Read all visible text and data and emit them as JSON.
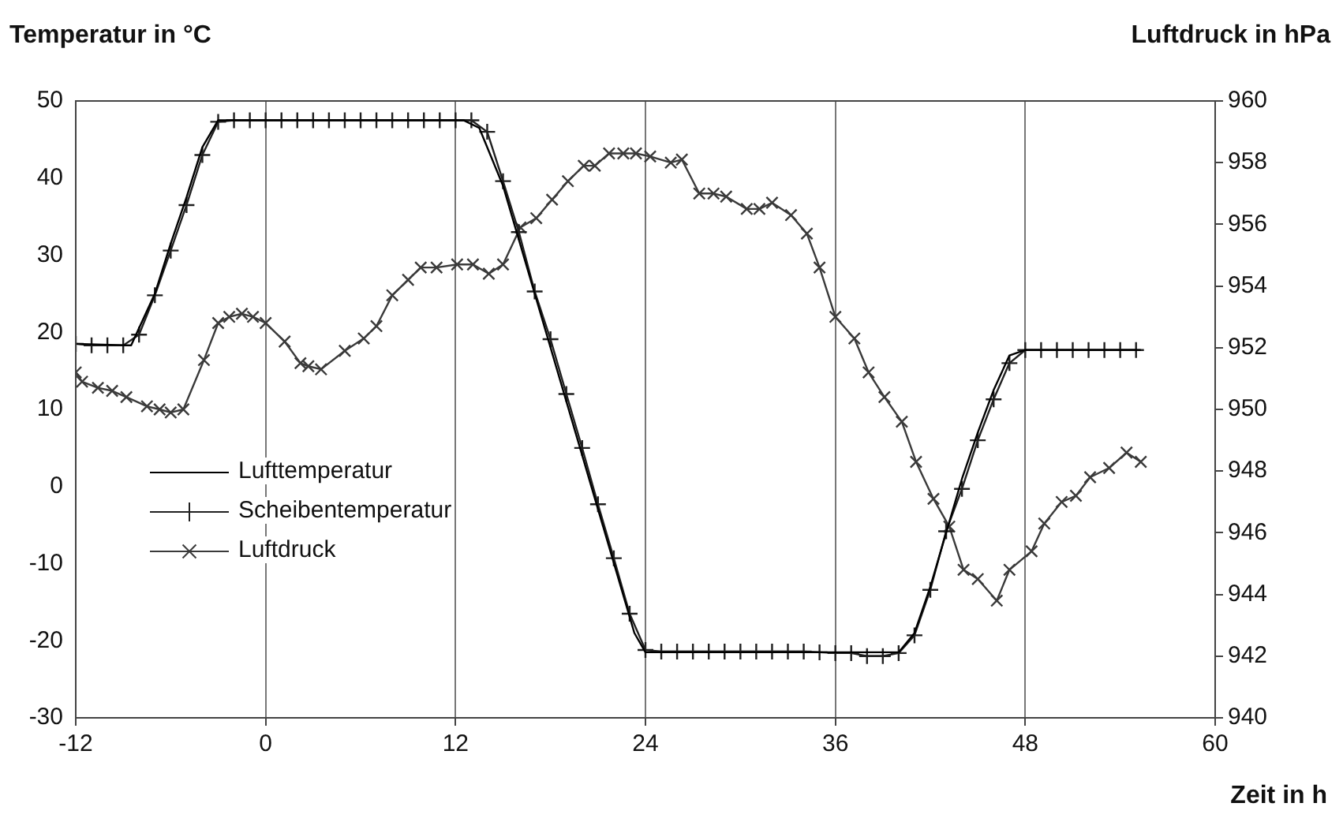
{
  "chart_data": {
    "type": "line",
    "xlabel": "Zeit in h",
    "ylabel": "Temperatur in °C",
    "y2label": "Luftdruck in hPa",
    "xlim": [
      -12,
      60
    ],
    "xticks": [
      -12,
      0,
      12,
      24,
      36,
      48,
      60
    ],
    "ylim": [
      -30,
      50
    ],
    "yticks": [
      -30,
      -20,
      -10,
      0,
      10,
      20,
      30,
      40,
      50
    ],
    "y2lim": [
      940,
      960
    ],
    "y2ticks": [
      940,
      942,
      944,
      946,
      948,
      950,
      952,
      954,
      956,
      958,
      960
    ],
    "grid": "x",
    "legend": "left",
    "line_style": "solid",
    "series": [
      {
        "name": "Lufttemperatur",
        "color": "#000000",
        "marker": "none",
        "x": [
          -12,
          -8.5,
          -7,
          -6,
          -5,
          -4,
          -3,
          12.5,
          13.5,
          15,
          23.3,
          24,
          40,
          41,
          42,
          43,
          44,
          45,
          46,
          47,
          48,
          55.3
        ],
        "values": [
          18.5,
          18.3,
          25,
          31.5,
          37.5,
          44,
          47.5,
          47.5,
          46.5,
          39,
          -19,
          -21.5,
          -21.5,
          -19,
          -13,
          -6,
          1,
          7,
          12.5,
          17,
          17.7,
          17.7
        ]
      },
      {
        "name": "Scheibentemperatur",
        "color": "#202020",
        "marker": "plus",
        "x": [
          -12,
          -11,
          -10,
          -9,
          -8,
          -7,
          -6,
          -5,
          -4,
          -3,
          -2,
          -1,
          0,
          1,
          2,
          3,
          4,
          5,
          6,
          7,
          8,
          9,
          10,
          11,
          12,
          13,
          14,
          15,
          16,
          17,
          18,
          19,
          20,
          21,
          22,
          23,
          24,
          25,
          26,
          27,
          28,
          29,
          30,
          31,
          32,
          33,
          34,
          35,
          36,
          37,
          38,
          39,
          40,
          41,
          42,
          43,
          44,
          45,
          46,
          47,
          48,
          49,
          50,
          51,
          52,
          53,
          54,
          55
        ],
        "values": [
          18.5,
          18.3,
          18.3,
          18.3,
          19.7,
          24.8,
          30.6,
          36.5,
          43,
          47.3,
          47.5,
          47.5,
          47.5,
          47.5,
          47.5,
          47.5,
          47.5,
          47.5,
          47.5,
          47.5,
          47.5,
          47.5,
          47.5,
          47.5,
          47.5,
          47.5,
          46,
          39.6,
          33,
          25.3,
          19.1,
          12,
          5,
          -2.3,
          -9.3,
          -16.5,
          -21.2,
          -21.4,
          -21.4,
          -21.4,
          -21.4,
          -21.4,
          -21.4,
          -21.4,
          -21.4,
          -21.4,
          -21.4,
          -21.5,
          -21.6,
          -21.6,
          -22,
          -22,
          -21.6,
          -19.3,
          -13.4,
          -5.8,
          -0.3,
          6,
          11.3,
          16,
          17.7,
          17.7,
          17.7,
          17.7,
          17.7,
          17.7,
          17.7,
          17.7
        ]
      },
      {
        "name": "Luftdruck",
        "color": "#3a3a3a",
        "marker": "cross",
        "axis": "y2",
        "x": [
          -12,
          -11.6,
          -10.6,
          -9.7,
          -8.8,
          -7.5,
          -6.7,
          -6,
          -5.2,
          -3.9,
          -3,
          -2.3,
          -1.5,
          -0.8,
          0,
          1.2,
          2.2,
          2.7,
          3.5,
          5,
          6.2,
          7,
          8,
          9,
          9.8,
          10.8,
          12.1,
          13.1,
          14.1,
          15,
          16.1,
          17.1,
          18.1,
          19.1,
          20.1,
          20.8,
          21.7,
          22.6,
          23.4,
          24.3,
          25.6,
          26.3,
          27.4,
          28.3,
          29.1,
          30.4,
          31.2,
          32,
          33.2,
          34.2,
          35,
          36,
          37.2,
          38.1,
          39.1,
          40.2,
          41.1,
          42.2,
          43.2,
          44.1,
          45,
          46.2,
          47,
          48.4,
          49.2,
          50.3,
          51.2,
          52.1,
          53.3,
          54.4,
          55.3
        ],
        "values": [
          951.2,
          950.9,
          950.7,
          950.6,
          950.4,
          950.1,
          950,
          949.9,
          950,
          951.6,
          952.8,
          953,
          953.1,
          953,
          952.8,
          952.2,
          951.5,
          951.4,
          951.3,
          951.9,
          952.3,
          952.7,
          953.7,
          954.2,
          954.6,
          954.6,
          954.7,
          954.7,
          954.4,
          954.7,
          955.9,
          956.2,
          956.8,
          957.4,
          957.9,
          957.9,
          958.3,
          958.3,
          958.3,
          958.2,
          958,
          958.1,
          957,
          957,
          956.9,
          956.5,
          956.5,
          956.7,
          956.3,
          955.7,
          954.6,
          953,
          952.3,
          951.2,
          950.4,
          949.6,
          948.3,
          947.1,
          946.2,
          944.8,
          944.5,
          943.8,
          944.8,
          945.4,
          946.3,
          947,
          947.2,
          947.8,
          948.1,
          948.6,
          948.3
        ]
      }
    ]
  }
}
